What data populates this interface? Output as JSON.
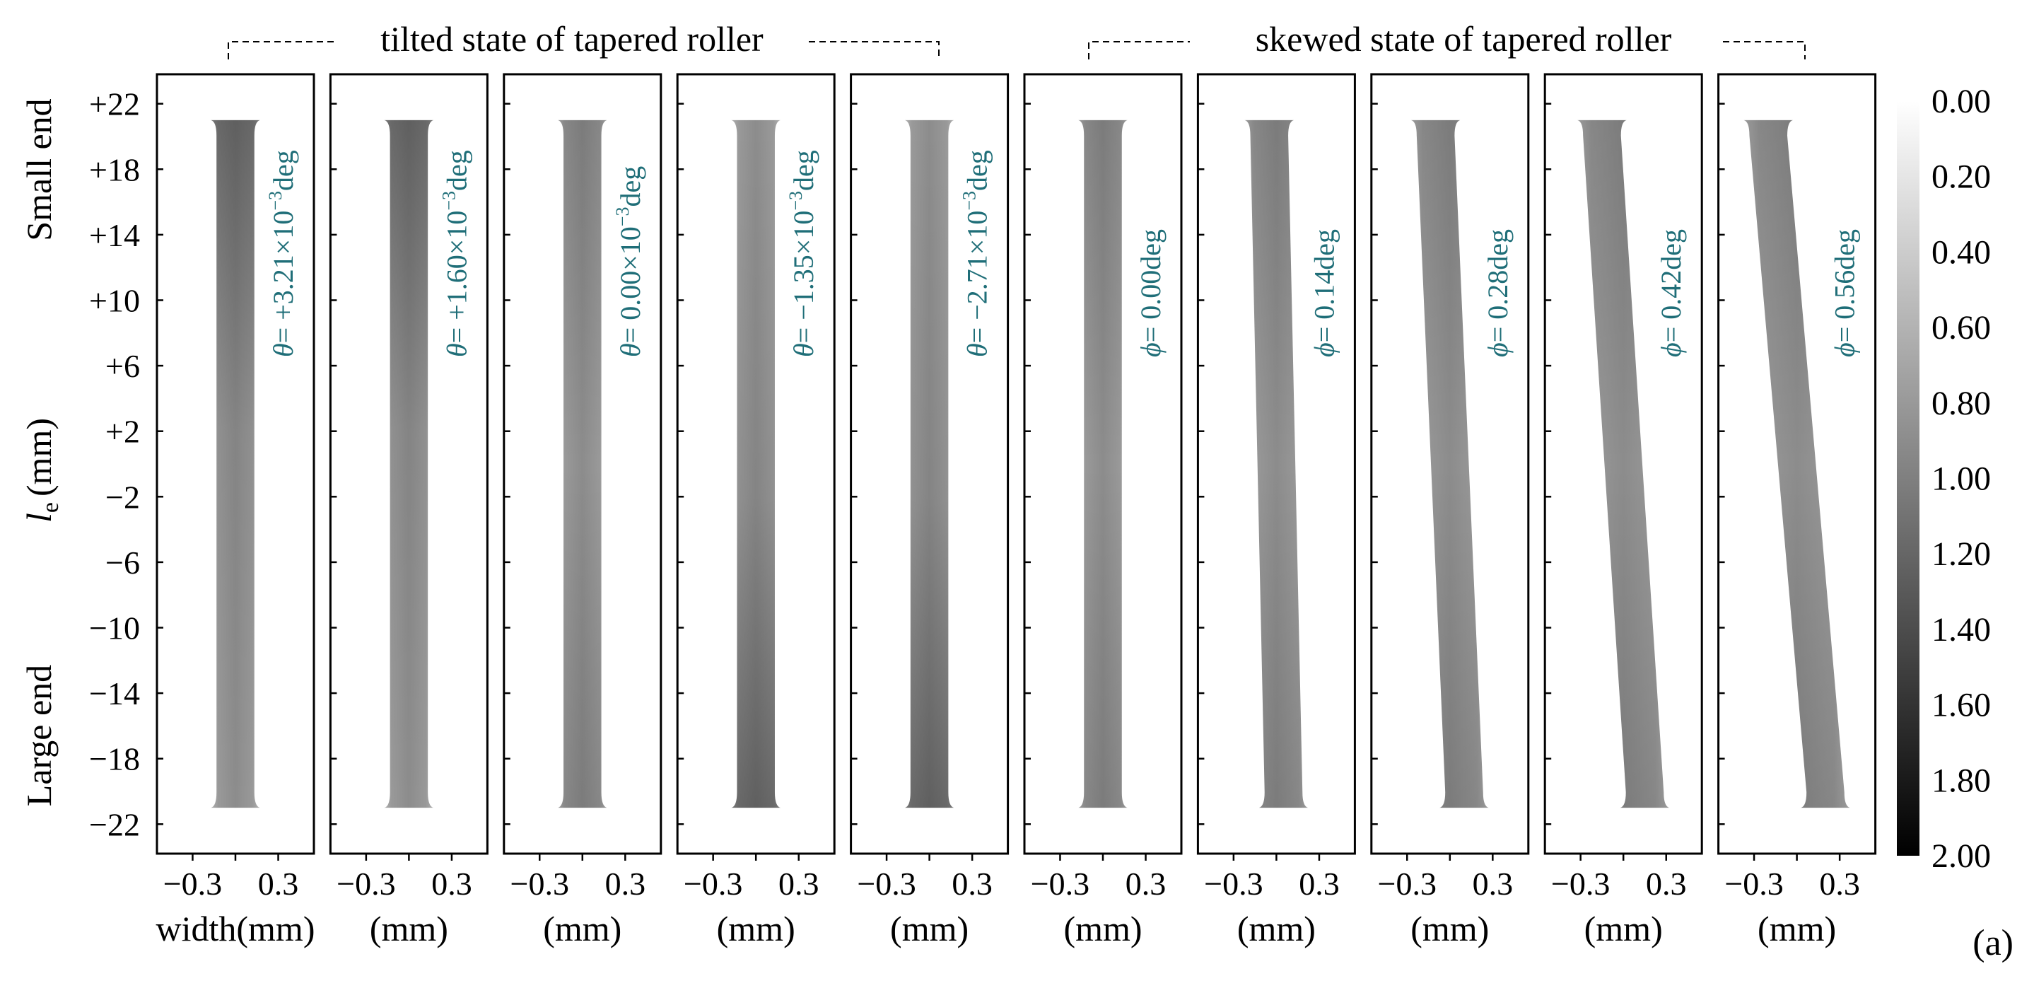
{
  "chart_data": {
    "type": "heatmap",
    "group_labels": [
      "tilted state of tapered roller",
      "skewed state of tapered roller"
    ],
    "y_label_main": "l",
    "y_label_sub": "e",
    "y_label_unit": "(mm)",
    "y_end_labels": {
      "top": "Small end",
      "bottom": "Large end"
    },
    "y_ticks": [
      22,
      18,
      14,
      10,
      6,
      2,
      -2,
      -6,
      -10,
      -14,
      -18,
      -22
    ],
    "y_tick_labels": [
      "+22",
      "+18",
      "+14",
      "+10",
      "+6",
      "+2",
      "−2",
      "−6",
      "−10",
      "−14",
      "−18",
      "−22"
    ],
    "ylim": [
      -23.8,
      23.8
    ],
    "x_ticks": [
      -0.3,
      0.3
    ],
    "x_tick_labels": [
      "−0.3",
      "0.3"
    ],
    "xlim": [
      -0.55,
      0.55
    ],
    "x_label_first": "width(mm)",
    "x_label_rest": "(mm)",
    "panel_label": "(a)",
    "colorbar": {
      "ticks": [
        0.0,
        0.2,
        0.4,
        0.6,
        0.8,
        1.0,
        1.2,
        1.4,
        1.6,
        1.8,
        2.0
      ],
      "tick_labels": [
        "0.00",
        "0.20",
        "0.40",
        "0.60",
        "0.80",
        "1.00",
        "1.20",
        "1.40",
        "1.60",
        "1.80",
        "2.00"
      ],
      "range": [
        0.0,
        2.0
      ],
      "color_low": "#ffffff",
      "color_high": "#000000"
    },
    "contact_length": [
      -21,
      21
    ],
    "panels": [
      {
        "symbol": "θ",
        "label": "= +3.21×10",
        "exp": "−3",
        "unit": "deg",
        "lean": 0.0,
        "max_end": "top"
      },
      {
        "symbol": "θ",
        "label": "= +1.60×10",
        "exp": "−3",
        "unit": "deg",
        "lean": 0.0,
        "max_end": "top"
      },
      {
        "symbol": "θ",
        "label": "= 0.00×10",
        "exp": "−3",
        "unit": "deg",
        "lean": 0.0,
        "max_end": "none"
      },
      {
        "symbol": "θ",
        "label": "= −1.35×10",
        "exp": "−3",
        "unit": "deg",
        "lean": 0.0,
        "max_end": "bottom"
      },
      {
        "symbol": "θ",
        "label": "= −2.71×10",
        "exp": "−3",
        "unit": "deg",
        "lean": 0.0,
        "max_end": "bottom"
      },
      {
        "symbol": "ϕ",
        "label": "= 0.00deg",
        "exp": "",
        "unit": "",
        "lean": 0.0,
        "max_end": "none"
      },
      {
        "symbol": "ϕ",
        "label": "= 0.14deg",
        "exp": "",
        "unit": "",
        "lean": 0.1,
        "max_end": "none"
      },
      {
        "symbol": "ϕ",
        "label": "= 0.28deg",
        "exp": "",
        "unit": "",
        "lean": 0.2,
        "max_end": "none"
      },
      {
        "symbol": "ϕ",
        "label": "= 0.42deg",
        "exp": "",
        "unit": "",
        "lean": 0.3,
        "max_end": "none"
      },
      {
        "symbol": "ϕ",
        "label": "= 0.56deg",
        "exp": "",
        "unit": "",
        "lean": 0.4,
        "max_end": "none"
      }
    ]
  }
}
